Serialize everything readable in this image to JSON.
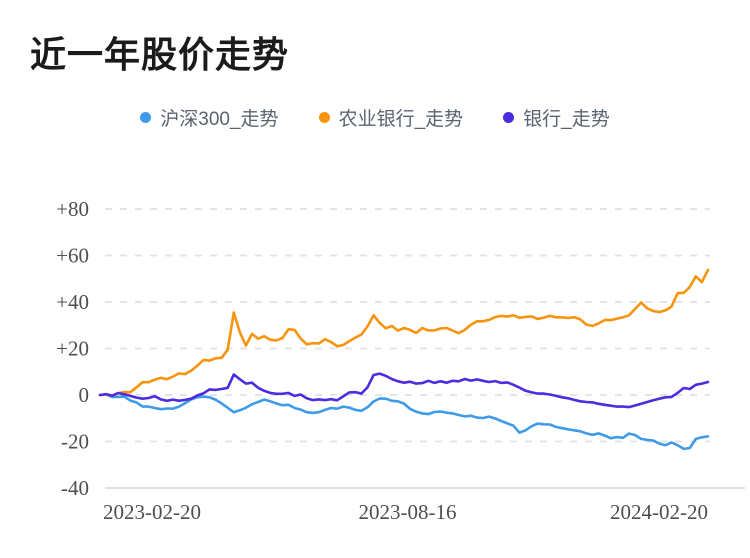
{
  "page": {
    "title": "近一年股价走势"
  },
  "chart_data": {
    "type": "line",
    "title": "近一年股价走势",
    "legend_position": "top",
    "grid": "horizontal dashed",
    "colors": {
      "hs300": "#3F9BE8",
      "abc_bank": "#F7930D",
      "bank_sector": "#4E2BE0",
      "grid_line": "#e4e4e4",
      "axis_line": "#e0e0e0",
      "tick_text": "#4e4e4e"
    },
    "x_axis": {
      "tick_labels": [
        "2023-02-20",
        "2023-08-16",
        "2024-02-20"
      ],
      "tick_positions": [
        0,
        0.5,
        1
      ]
    },
    "y_axis": {
      "tick_labels": [
        "+80",
        "+60",
        "+40",
        "+20",
        "0",
        "-20",
        "-40"
      ],
      "tick_values": [
        80,
        60,
        40,
        20,
        0,
        -20,
        -40
      ],
      "range": [
        -40,
        80
      ]
    },
    "x_spacing": "uniform fractions of one year from 2023-02-20 to 2024-02-20",
    "series": [
      {
        "name": "沪深300_走势",
        "color": "#3F9BE8",
        "values": [
          0,
          0.2,
          -0.8,
          -0.8,
          -0.7,
          -2.4,
          -3.2,
          -5,
          -5,
          -5.6,
          -6.1,
          -5.8,
          -5.9,
          -5,
          -3.5,
          -1.9,
          -1,
          -0.7,
          -1,
          -2,
          -3.6,
          -5.5,
          -7.4,
          -6.6,
          -5.5,
          -4,
          -3,
          -2,
          -2.7,
          -3.6,
          -4.4,
          -4.2,
          -5.6,
          -6.3,
          -7.4,
          -7.7,
          -7.4,
          -6.4,
          -5.6,
          -5.9,
          -5,
          -5.4,
          -6.4,
          -6.8,
          -5.3,
          -2.8,
          -1.5,
          -1.6,
          -2.5,
          -2.7,
          -3.7,
          -6,
          -7.2,
          -7.9,
          -8.2,
          -7.3,
          -7.1,
          -7.6,
          -7.9,
          -8.6,
          -9.2,
          -8.9,
          -9.7,
          -9.9,
          -9.3,
          -10.1,
          -11.2,
          -12.2,
          -13.2,
          -16.2,
          -15.2,
          -13.4,
          -12.3,
          -12.6,
          -12.7,
          -13.7,
          -14.3,
          -14.8,
          -15.2,
          -15.6,
          -16.5,
          -17.1,
          -16.5,
          -17.4,
          -18.6,
          -18.1,
          -18.4,
          -16.6,
          -17.2,
          -18.9,
          -19.3,
          -19.6,
          -20.9,
          -21.6,
          -20.4,
          -21.6,
          -23.2,
          -22.8,
          -18.9,
          -18.2,
          -17.8
        ]
      },
      {
        "name": "农业银行_走势",
        "color": "#F7930D",
        "values": [
          0,
          0.2,
          -0.3,
          0.8,
          1.3,
          1.2,
          3.3,
          5.5,
          5.5,
          6.6,
          7.4,
          6.8,
          7.9,
          9.3,
          9,
          10.5,
          12.6,
          15,
          14.8,
          15.8,
          16,
          19.5,
          35.5,
          27,
          21.3,
          26.3,
          24.2,
          25.3,
          23.8,
          23.5,
          24.5,
          28.3,
          28,
          24.3,
          21.8,
          22.3,
          22.2,
          24,
          22.8,
          21,
          21.5,
          23.2,
          24.7,
          26,
          29.5,
          34.3,
          31,
          28.7,
          29.7,
          27.7,
          28.8,
          28,
          26.7,
          28.8,
          27.8,
          27.8,
          28.6,
          28.8,
          27.7,
          26.6,
          28,
          30.2,
          31.7,
          31.7,
          32.3,
          33.5,
          34,
          33.7,
          34.3,
          33.2,
          33.6,
          33.8,
          32.7,
          33.3,
          34,
          33.4,
          33.4,
          33.1,
          33.5,
          32.5,
          30.3,
          29.7,
          30.8,
          32.2,
          32.2,
          32.8,
          33.4,
          34.3,
          37,
          39.8,
          37.3,
          36.1,
          35.7,
          36.4,
          38,
          43.8,
          43.9,
          46.5,
          51,
          48.6,
          53.8
        ]
      },
      {
        "name": "银行_走势",
        "color": "#4E2BE0",
        "values": [
          0,
          0.4,
          -0.3,
          0.8,
          0.3,
          -0.4,
          -1.1,
          -1.6,
          -1.3,
          -0.5,
          -1.9,
          -2.5,
          -2,
          -2.5,
          -2.1,
          -1.6,
          -0.2,
          0.7,
          2.4,
          2.2,
          2.6,
          3.1,
          8.8,
          6.8,
          4.9,
          5.3,
          3.1,
          1.8,
          0.9,
          0.5,
          0.5,
          0.9,
          -0.4,
          0.2,
          -1.4,
          -2.2,
          -1.9,
          -2.2,
          -1.8,
          -2.3,
          -0.6,
          1.1,
          1.2,
          0.6,
          3.3,
          8.6,
          9.2,
          8.2,
          6.9,
          5.9,
          5.3,
          5.7,
          4.9,
          5.1,
          6.1,
          5.2,
          5.9,
          5.3,
          6.1,
          5.9,
          6.9,
          6.2,
          6.7,
          6.1,
          5.6,
          6,
          5.2,
          5.4,
          4.4,
          3.2,
          1.8,
          1.1,
          0.6,
          0.6,
          0.2,
          -0.4,
          -1,
          -1.4,
          -2.1,
          -2.7,
          -3,
          -3.2,
          -3.8,
          -4.2,
          -4.6,
          -5,
          -5,
          -5.2,
          -4.5,
          -3.8,
          -3,
          -2.3,
          -1.6,
          -1,
          -0.8,
          0.9,
          3,
          2.6,
          4.4,
          4.9,
          5.6
        ]
      }
    ]
  }
}
